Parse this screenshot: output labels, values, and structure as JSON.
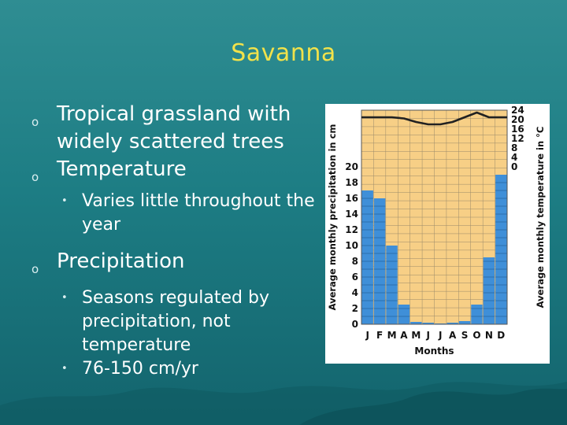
{
  "slide": {
    "title": "Savanna",
    "bullets": [
      {
        "text": "Tropical grassland with widely scattered trees"
      },
      {
        "text": "Temperature",
        "sub": [
          "Varies little throughout the year"
        ]
      },
      {
        "text": "Precipitation",
        "sub": [
          "Seasons regulated by precipitation, not temperature",
          "76-150 cm/yr"
        ]
      }
    ]
  },
  "colors": {
    "background": "#1f8088",
    "title": "#f2e24a",
    "bar": "#3f8fd8",
    "plot_bg": "#f7cf86",
    "temp_line": "#222222"
  },
  "chart_data": {
    "type": "bar",
    "categories": [
      "J",
      "F",
      "M",
      "A",
      "M",
      "J",
      "J",
      "A",
      "S",
      "O",
      "N",
      "D"
    ],
    "xlabel": "Months",
    "ylabel": "Average monthly precipitation in cm",
    "ylim": [
      0,
      20
    ],
    "yticks": [
      "0",
      "2",
      "4",
      "6",
      "8",
      "10",
      "12",
      "14",
      "16",
      "18",
      "20"
    ],
    "y2label": "Average monthly temperature in °C",
    "y2lim": [
      0,
      24
    ],
    "y2ticks": [
      "0",
      "4",
      "8",
      "12",
      "16",
      "20",
      "24"
    ],
    "series": [
      {
        "kind": "bar",
        "values": [
          17,
          16,
          10,
          2.5,
          0.3,
          0.2,
          0.1,
          0.2,
          0.4,
          2.5,
          8.5,
          19
        ]
      },
      {
        "kind": "line",
        "axis": "y2",
        "values": [
          21,
          21,
          21,
          20.5,
          19,
          18,
          18,
          19,
          21,
          23,
          21,
          21
        ]
      }
    ],
    "grid": true
  }
}
